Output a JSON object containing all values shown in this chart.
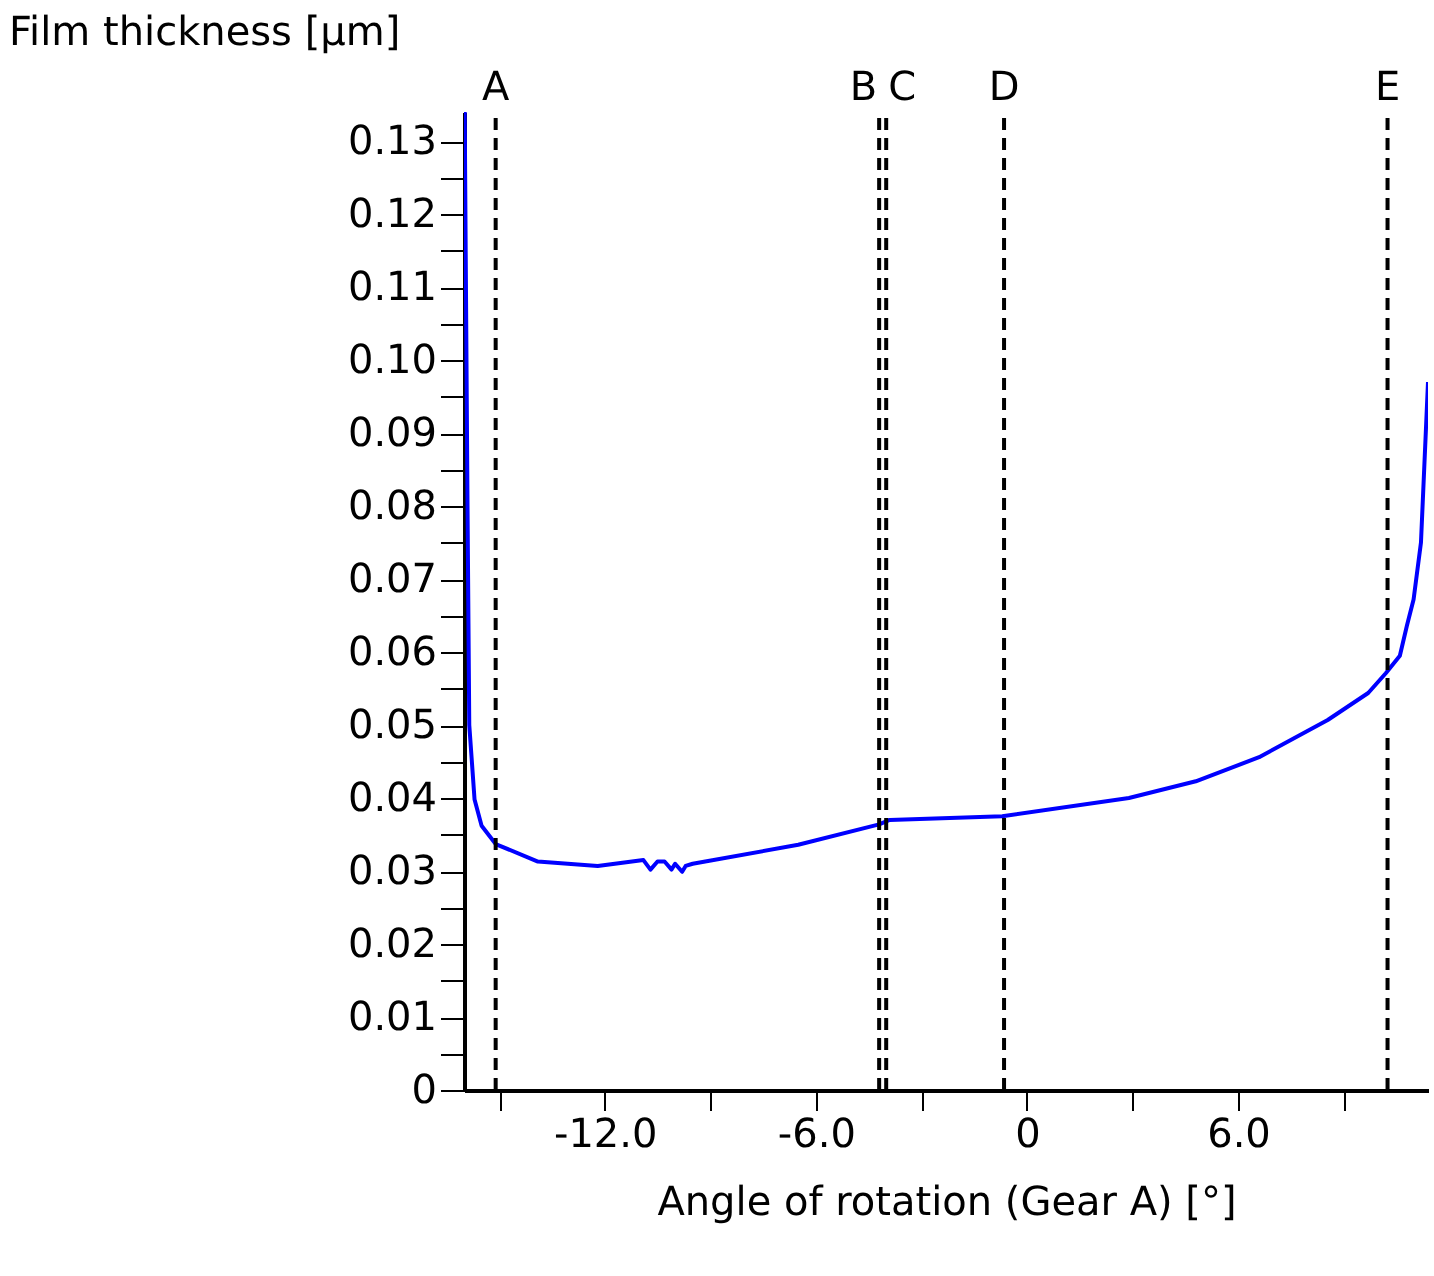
{
  "chart_data": {
    "type": "line",
    "xlabel": "Angle of rotation (Gear A) [°]",
    "ylabel": "Film thickness [µm]",
    "xlim": [
      -16,
      11.4
    ],
    "ylim": [
      0,
      0.134
    ],
    "xticks": [
      {
        "value": -15,
        "label": null
      },
      {
        "value": -12,
        "label": "-12.0"
      },
      {
        "value": -9,
        "label": null
      },
      {
        "value": -6,
        "label": "-6.0"
      },
      {
        "value": -3,
        "label": null
      },
      0,
      {
        "value": 3,
        "label": null
      },
      {
        "value": 6,
        "label": "6.0"
      },
      {
        "value": 9,
        "label": null
      }
    ],
    "yticks": [
      0,
      {
        "value": 0.005,
        "label": null
      },
      0.01,
      {
        "value": 0.015,
        "label": null
      },
      0.02,
      {
        "value": 0.025,
        "label": null
      },
      0.03,
      {
        "value": 0.035,
        "label": null
      },
      0.04,
      {
        "value": 0.045,
        "label": null
      },
      0.05,
      {
        "value": 0.055,
        "label": null
      },
      0.06,
      {
        "value": 0.065,
        "label": null
      },
      0.07,
      {
        "value": 0.075,
        "label": null
      },
      0.08,
      {
        "value": 0.085,
        "label": null
      },
      0.09,
      {
        "value": 0.095,
        "label": null
      },
      {
        "value": 0.1,
        "label": "0.10"
      },
      {
        "value": 0.105,
        "label": null
      },
      0.11,
      {
        "value": 0.115,
        "label": null
      },
      0.12,
      {
        "value": 0.125,
        "label": null
      },
      0.13
    ],
    "grid": false,
    "x": [
      -15.98,
      -15.9,
      -15.85,
      -15.7,
      -15.5,
      -15.1,
      -13.9,
      -12.2,
      -10.9,
      -10.7,
      -10.5,
      -10.3,
      -10.1,
      -10.0,
      -9.8,
      -9.7,
      -9.5,
      -6.5,
      -4.2,
      -3.9,
      -0.7,
      2.9,
      4.8,
      6.6,
      8.55,
      9.7,
      10.2,
      10.6,
      10.8,
      10.99,
      11.2,
      11.4
    ],
    "series": [
      {
        "color": "#0000ff",
        "values": [
          0.134,
          0.08,
          0.05,
          0.0398,
          0.0362,
          0.0337,
          0.0313,
          0.0307,
          0.0315,
          0.0302,
          0.0313,
          0.0313,
          0.0302,
          0.031,
          0.0299,
          0.0307,
          0.031,
          0.0336,
          0.0364,
          0.037,
          0.0375,
          0.04,
          0.0423,
          0.0456,
          0.0507,
          0.0544,
          0.0571,
          0.0595,
          0.0636,
          0.0672,
          0.075,
          0.097
        ]
      }
    ],
    "ref_lines": [
      {
        "axis": "x",
        "value": -15.1,
        "label": "A",
        "color": "#000000",
        "line_style": "dashed"
      },
      {
        "axis": "x",
        "value": -4.2,
        "label": "B",
        "color": "#000000",
        "line_style": "dashed"
      },
      {
        "axis": "x",
        "value": -4.0,
        "label": "C",
        "color": "#000000",
        "line_style": "dashed"
      },
      {
        "axis": "x",
        "value": -0.65,
        "label": "D",
        "color": "#000000",
        "line_style": "dashed"
      },
      {
        "axis": "x",
        "value": 10.25,
        "label": "E",
        "color": "#000000",
        "line_style": "dashed"
      }
    ]
  }
}
